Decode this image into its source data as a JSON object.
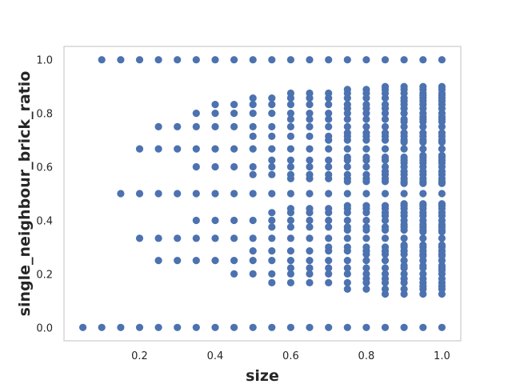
{
  "chart_data": {
    "type": "scatter",
    "title": "",
    "xlabel": "size",
    "ylabel": "single_neighbour_brick_ratio",
    "xlim": [
      0.0,
      1.05
    ],
    "ylim": [
      -0.05,
      1.05
    ],
    "xticks": [
      0.2,
      0.4,
      0.6,
      0.8,
      1.0
    ],
    "xtick_labels": [
      "0.2",
      "0.4",
      "0.6",
      "0.8",
      "1.0"
    ],
    "yticks": [
      0.0,
      0.2,
      0.4,
      0.6,
      0.8,
      1.0
    ],
    "ytick_labels": [
      "0.0",
      "0.2",
      "0.4",
      "0.6",
      "0.8",
      "1.0"
    ],
    "grid": false,
    "legend": "none",
    "marker_color": "#4c72b0",
    "series": [
      {
        "columns": [
          {
            "x": 0.05,
            "y": [
              0.0
            ]
          },
          {
            "x": 0.1,
            "y": [
              0.0,
              1.0
            ]
          },
          {
            "x": 0.15,
            "y": [
              0.0,
              0.5,
              1.0
            ]
          },
          {
            "x": 0.2,
            "y": [
              0.0,
              0.333,
              0.5,
              0.667,
              1.0
            ]
          },
          {
            "x": 0.25,
            "y": [
              0.0,
              0.25,
              0.333,
              0.5,
              0.667,
              0.75,
              1.0
            ]
          },
          {
            "x": 0.3,
            "y": [
              0.0,
              0.25,
              0.333,
              0.5,
              0.667,
              0.75,
              1.0
            ]
          },
          {
            "x": 0.35,
            "y": [
              0.0,
              0.25,
              0.333,
              0.4,
              0.5,
              0.6,
              0.667,
              0.75,
              0.8,
              1.0
            ]
          },
          {
            "x": 0.4,
            "y": [
              0.0,
              0.25,
              0.333,
              0.4,
              0.5,
              0.6,
              0.667,
              0.75,
              0.8,
              0.833,
              1.0
            ]
          },
          {
            "x": 0.45,
            "y": [
              0.0,
              0.2,
              0.25,
              0.333,
              0.4,
              0.5,
              0.6,
              0.667,
              0.75,
              0.8,
              0.833,
              1.0
            ]
          },
          {
            "x": 0.5,
            "y": [
              0.0,
              0.2,
              0.25,
              0.286,
              0.333,
              0.4,
              0.5,
              0.571,
              0.6,
              0.667,
              0.714,
              0.75,
              0.8,
              0.833,
              0.857,
              1.0
            ]
          },
          {
            "x": 0.55,
            "y": [
              0.0,
              0.167,
              0.2,
              0.25,
              0.286,
              0.333,
              0.375,
              0.4,
              0.429,
              0.5,
              0.571,
              0.6,
              0.625,
              0.667,
              0.714,
              0.75,
              0.8,
              0.833,
              0.857,
              1.0
            ]
          },
          {
            "x": 0.6,
            "y": [
              0.0,
              0.167,
              0.2,
              0.222,
              0.25,
              0.286,
              0.333,
              0.375,
              0.4,
              0.429,
              0.444,
              0.5,
              0.556,
              0.571,
              0.6,
              0.625,
              0.667,
              0.714,
              0.75,
              0.778,
              0.8,
              0.833,
              0.857,
              0.875,
              1.0
            ]
          },
          {
            "x": 0.65,
            "y": [
              0.0,
              0.167,
              0.2,
              0.222,
              0.25,
              0.286,
              0.333,
              0.375,
              0.4,
              0.429,
              0.444,
              0.5,
              0.556,
              0.571,
              0.6,
              0.625,
              0.667,
              0.714,
              0.75,
              0.778,
              0.8,
              0.833,
              0.857,
              0.875,
              1.0
            ]
          },
          {
            "x": 0.7,
            "y": [
              0.0,
              0.167,
              0.2,
              0.222,
              0.25,
              0.286,
              0.3,
              0.333,
              0.375,
              0.4,
              0.429,
              0.444,
              0.5,
              0.556,
              0.571,
              0.6,
              0.625,
              0.667,
              0.7,
              0.714,
              0.75,
              0.778,
              0.8,
              0.833,
              0.857,
              0.875,
              1.0
            ]
          },
          {
            "x": 0.75,
            "y": [
              0.0,
              0.143,
              0.167,
              0.2,
              0.222,
              0.25,
              0.286,
              0.3,
              0.333,
              0.364,
              0.375,
              0.4,
              0.429,
              0.444,
              0.455,
              0.5,
              0.545,
              0.556,
              0.571,
              0.6,
              0.625,
              0.636,
              0.667,
              0.7,
              0.714,
              0.727,
              0.75,
              0.778,
              0.8,
              0.818,
              0.833,
              0.857,
              0.875,
              0.889,
              1.0
            ]
          },
          {
            "x": 0.8,
            "y": [
              0.0,
              0.143,
              0.167,
              0.182,
              0.2,
              0.222,
              0.25,
              0.273,
              0.286,
              0.3,
              0.333,
              0.364,
              0.375,
              0.4,
              0.429,
              0.444,
              0.455,
              0.5,
              0.545,
              0.556,
              0.571,
              0.6,
              0.625,
              0.636,
              0.667,
              0.7,
              0.714,
              0.727,
              0.75,
              0.778,
              0.8,
              0.818,
              0.833,
              0.857,
              0.875,
              0.889,
              1.0
            ]
          },
          {
            "x": 0.85,
            "y": [
              0.0,
              0.125,
              0.143,
              0.167,
              0.182,
              0.2,
              0.222,
              0.25,
              0.273,
              0.286,
              0.3,
              0.333,
              0.364,
              0.375,
              0.4,
              0.417,
              0.429,
              0.444,
              0.455,
              0.5,
              0.545,
              0.556,
              0.571,
              0.583,
              0.6,
              0.625,
              0.636,
              0.667,
              0.7,
              0.714,
              0.727,
              0.75,
              0.778,
              0.8,
              0.818,
              0.833,
              0.857,
              0.875,
              0.889,
              0.9,
              1.0
            ]
          },
          {
            "x": 0.9,
            "y": [
              0.0,
              0.125,
              0.143,
              0.167,
              0.182,
              0.2,
              0.222,
              0.231,
              0.25,
              0.273,
              0.286,
              0.3,
              0.308,
              0.333,
              0.364,
              0.375,
              0.385,
              0.4,
              0.417,
              0.429,
              0.444,
              0.455,
              0.462,
              0.5,
              0.538,
              0.545,
              0.556,
              0.571,
              0.583,
              0.6,
              0.615,
              0.625,
              0.636,
              0.667,
              0.692,
              0.7,
              0.714,
              0.727,
              0.75,
              0.769,
              0.778,
              0.8,
              0.818,
              0.833,
              0.846,
              0.857,
              0.875,
              0.889,
              0.9,
              1.0
            ]
          },
          {
            "x": 0.95,
            "y": [
              0.0,
              0.125,
              0.143,
              0.154,
              0.167,
              0.182,
              0.2,
              0.222,
              0.231,
              0.25,
              0.267,
              0.273,
              0.286,
              0.3,
              0.308,
              0.333,
              0.357,
              0.364,
              0.375,
              0.385,
              0.4,
              0.417,
              0.429,
              0.444,
              0.455,
              0.462,
              0.5,
              0.538,
              0.545,
              0.556,
              0.571,
              0.583,
              0.6,
              0.615,
              0.625,
              0.636,
              0.643,
              0.667,
              0.692,
              0.7,
              0.714,
              0.727,
              0.75,
              0.769,
              0.778,
              0.786,
              0.8,
              0.818,
              0.833,
              0.846,
              0.857,
              0.867,
              0.875,
              0.889,
              0.9,
              1.0
            ]
          },
          {
            "x": 1.0,
            "y": [
              0.0,
              0.125,
              0.143,
              0.154,
              0.167,
              0.182,
              0.2,
              0.214,
              0.222,
              0.231,
              0.25,
              0.267,
              0.273,
              0.286,
              0.3,
              0.308,
              0.333,
              0.357,
              0.364,
              0.375,
              0.385,
              0.4,
              0.417,
              0.429,
              0.444,
              0.455,
              0.462,
              0.5,
              0.538,
              0.545,
              0.556,
              0.571,
              0.583,
              0.6,
              0.615,
              0.625,
              0.636,
              0.643,
              0.667,
              0.692,
              0.7,
              0.714,
              0.727,
              0.75,
              0.769,
              0.778,
              0.786,
              0.8,
              0.818,
              0.833,
              0.846,
              0.857,
              0.867,
              0.875,
              0.889,
              0.9,
              1.0
            ]
          }
        ]
      }
    ]
  }
}
